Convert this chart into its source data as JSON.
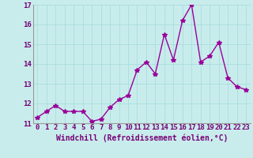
{
  "x": [
    0,
    1,
    2,
    3,
    4,
    5,
    6,
    7,
    8,
    9,
    10,
    11,
    12,
    13,
    14,
    15,
    16,
    17,
    18,
    19,
    20,
    21,
    22,
    23
  ],
  "y": [
    11.3,
    11.6,
    11.9,
    11.6,
    11.6,
    11.6,
    11.1,
    11.2,
    11.8,
    12.2,
    12.4,
    13.7,
    14.1,
    13.5,
    15.5,
    14.2,
    16.2,
    17.0,
    14.1,
    14.4,
    15.1,
    13.3,
    12.85,
    12.7
  ],
  "line_color": "#990099",
  "marker": "*",
  "marker_size": 4,
  "bg_color": "#c8ecec",
  "grid_color": "#aadddd",
  "xlabel": "Windchill (Refroidissement éolien,°C)",
  "xlabel_color": "#770077",
  "tick_color": "#770077",
  "ylim": [
    11,
    17
  ],
  "yticks": [
    11,
    12,
    13,
    14,
    15,
    16,
    17
  ],
  "xticks": [
    0,
    1,
    2,
    3,
    4,
    5,
    6,
    7,
    8,
    9,
    10,
    11,
    12,
    13,
    14,
    15,
    16,
    17,
    18,
    19,
    20,
    21,
    22,
    23
  ],
  "line_width": 1.0,
  "font_size": 6.5,
  "xlabel_fontsize": 7.0
}
